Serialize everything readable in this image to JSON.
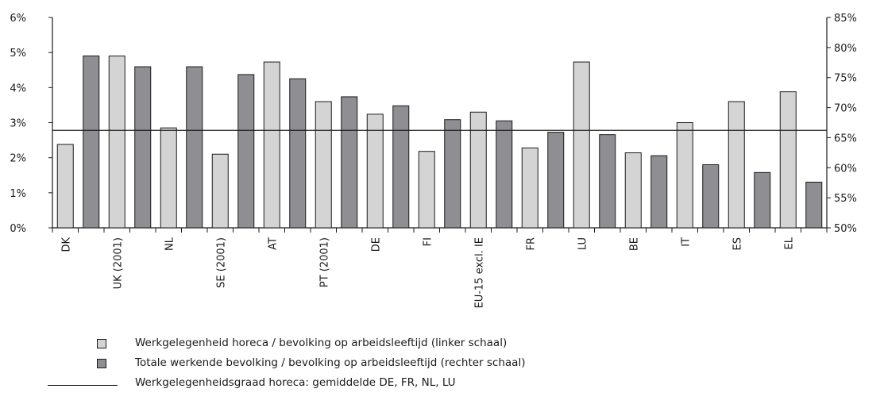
{
  "chart_data": {
    "type": "bar",
    "categories": [
      "DK",
      "",
      "UK (2001)",
      "",
      "NL",
      "",
      "SE (2001)",
      "",
      "AT",
      "",
      "PT (2001)",
      "",
      "DE",
      "",
      "FI",
      "",
      "EU-15 excl. IE",
      "",
      "FR",
      "",
      "LU",
      "",
      "BE",
      "",
      "IT",
      "",
      "ES",
      "",
      "EL",
      ""
    ],
    "y_left": {
      "min": 0,
      "max": 6,
      "ticks": [
        "0%",
        "1%",
        "2%",
        "3%",
        "4%",
        "5%",
        "6%"
      ]
    },
    "y_right": {
      "min": 50,
      "max": 85,
      "ticks": [
        "50%",
        "55%",
        "60%",
        "65%",
        "70%",
        "75%",
        "80%",
        "85%"
      ]
    },
    "series": [
      {
        "name": "Werkgelegenheid horeca / bevolking op arbeidsleeftijd (linker schaal)",
        "axis": "left",
        "color": "#d4d4d4",
        "values": [
          2.38,
          null,
          4.9,
          null,
          2.85,
          null,
          2.1,
          null,
          4.73,
          null,
          3.6,
          null,
          3.24,
          null,
          2.18,
          null,
          3.3,
          null,
          2.28,
          null,
          4.73,
          null,
          2.14,
          null,
          3.0,
          null,
          3.6,
          null,
          3.88,
          null
        ]
      },
      {
        "name": "Totale werkende bevolking / bevolking op arbeidsleeftijd (rechter schaal)",
        "axis": "right",
        "color": "#8e8e93",
        "values": [
          null,
          78.6,
          null,
          76.8,
          null,
          76.8,
          null,
          75.5,
          null,
          74.8,
          null,
          71.8,
          null,
          70.3,
          null,
          68.0,
          null,
          67.8,
          null,
          65.9,
          null,
          65.5,
          null,
          62.0,
          null,
          60.5,
          null,
          59.2,
          null,
          57.6
        ]
      }
    ],
    "reference_line": {
      "name": "Werkgelegenheidsgraad horeca: gemiddelde DE, FR, NL, LU",
      "axis": "left",
      "value": 2.78
    },
    "grid": false
  }
}
